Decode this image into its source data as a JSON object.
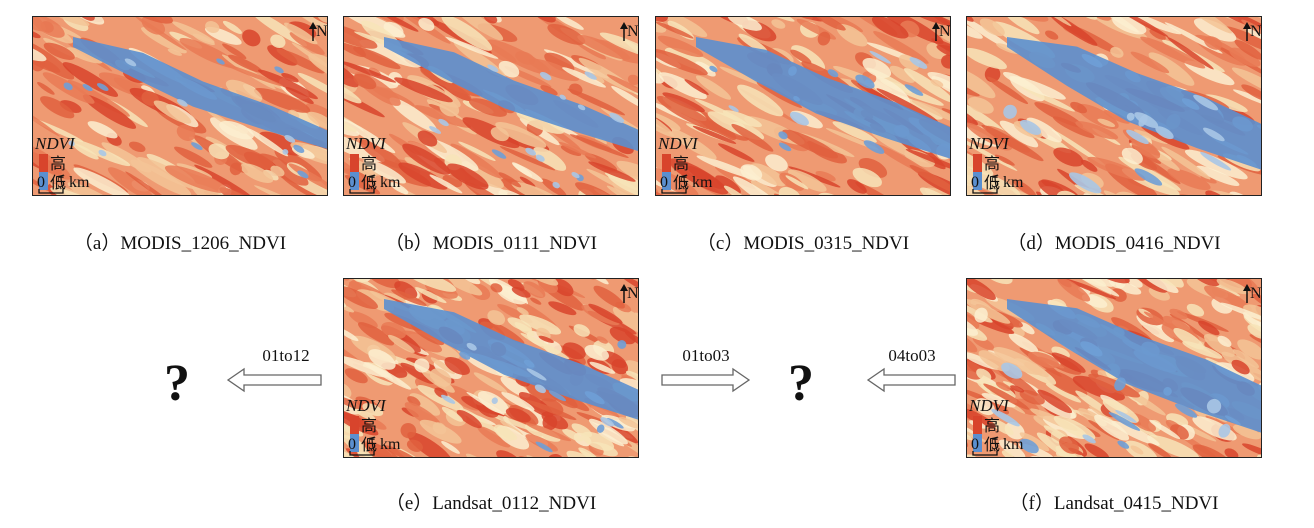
{
  "figure": {
    "panels": [
      {
        "caption": "（a）MODIS_1206_NDVI",
        "legend_title": "NDVI",
        "legend_high": "高",
        "legend_low": "低",
        "scale_start": "0",
        "scale_end": "5 km",
        "north": "N"
      },
      {
        "caption": "（b）MODIS_0111_NDVI",
        "legend_title": "NDVI",
        "legend_high": "高",
        "legend_low": "低",
        "scale_start": "0",
        "scale_end": "5 km",
        "north": "N"
      },
      {
        "caption": "（c）MODIS_0315_NDVI",
        "legend_title": "NDVI",
        "legend_high": "高",
        "legend_low": "低",
        "scale_start": "0",
        "scale_end": "5 km",
        "north": "N"
      },
      {
        "caption": "（d）MODIS_0416_NDVI",
        "legend_title": "NDVI",
        "legend_high": "高",
        "legend_low": "低",
        "scale_start": "0",
        "scale_end": "5 km",
        "north": "N"
      },
      {
        "caption": "（e）Landsat_0112_NDVI",
        "legend_title": "NDVI",
        "legend_high": "高",
        "legend_low": "低",
        "scale_start": "0",
        "scale_end": "5 km",
        "north": "N"
      },
      {
        "caption": "（f）Landsat_0415_NDVI",
        "legend_title": "NDVI",
        "legend_high": "高",
        "legend_low": "低",
        "scale_start": "0",
        "scale_end": "5 km",
        "north": "N"
      }
    ],
    "arrows": [
      {
        "label": "01to12"
      },
      {
        "label": "01to03"
      },
      {
        "label": "04to03"
      }
    ],
    "unknowns": [
      "?",
      "?"
    ]
  }
}
